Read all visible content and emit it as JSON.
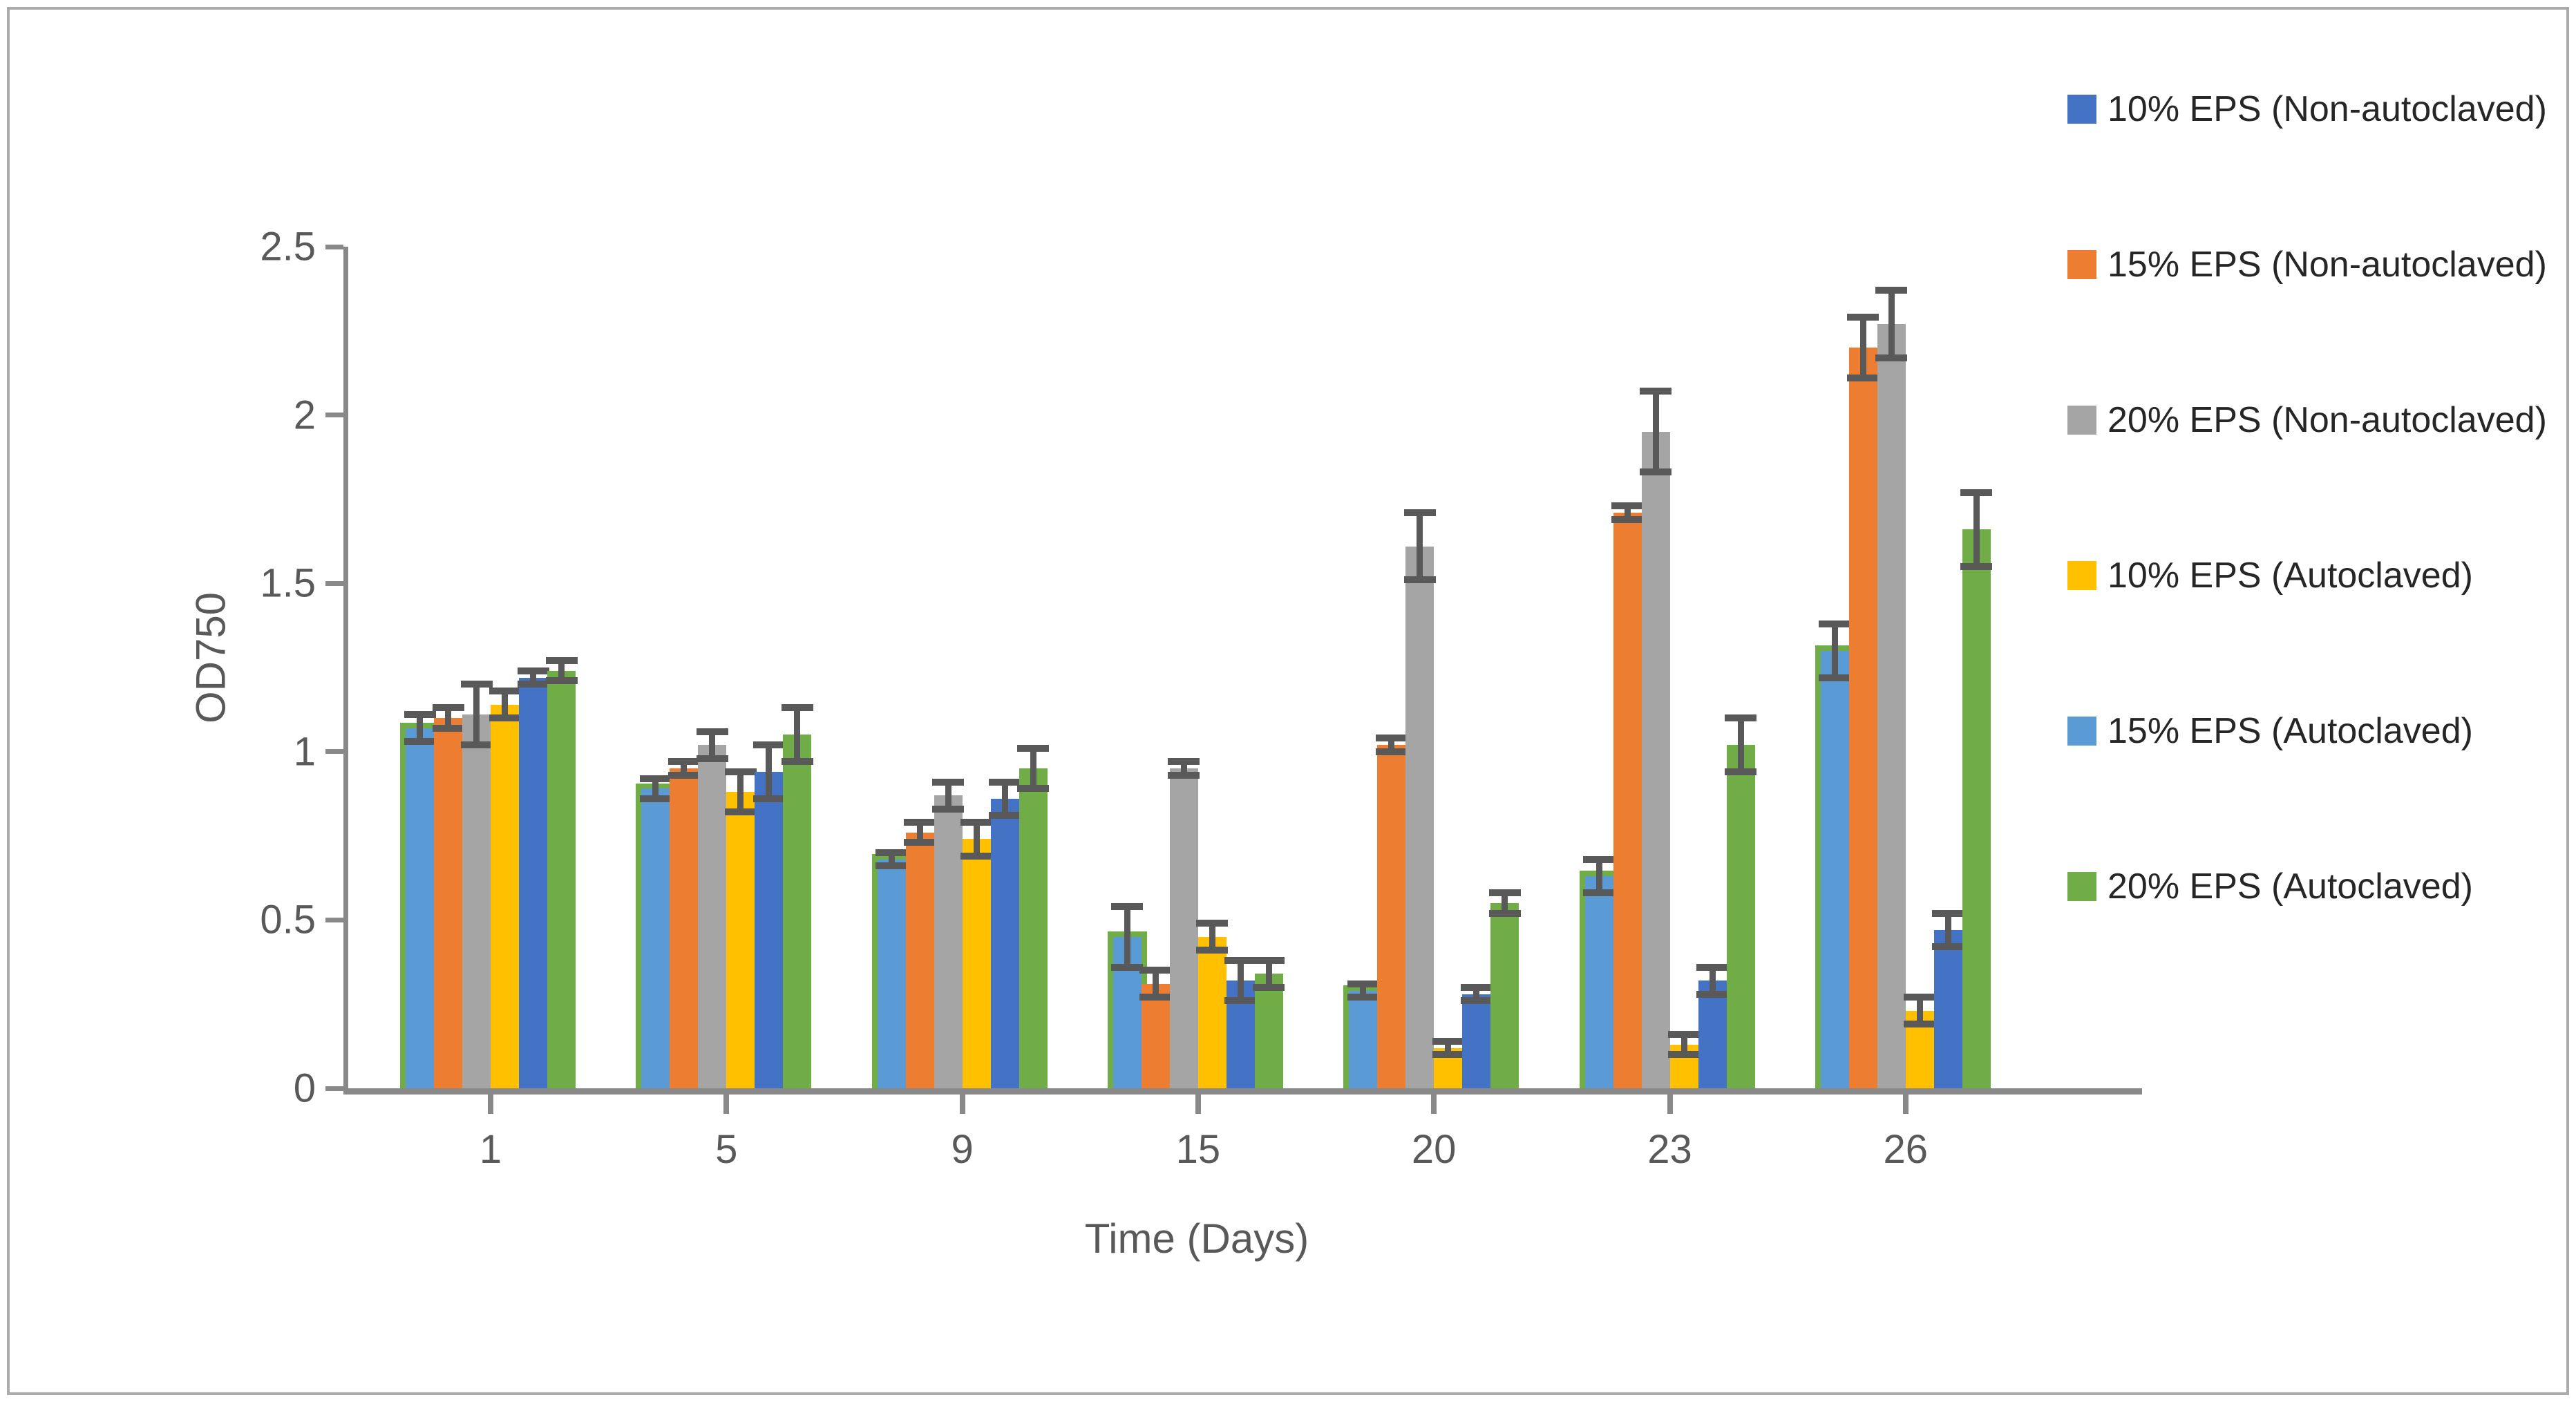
{
  "figure": {
    "background": "#FFFFFF",
    "frame_border_color": "#ABABAB"
  },
  "colors": {
    "axis_line": "#898989",
    "error_bar": "#595959",
    "tick_text": "#595959",
    "axis_title_text": "#595959",
    "legend_text": "#262626"
  },
  "chart_data": {
    "type": "bar",
    "title": "",
    "xlabel": "Time (Days)",
    "ylabel": "OD750",
    "categories": [
      "1",
      "5",
      "9",
      "15",
      "20",
      "23",
      "26"
    ],
    "y_axis": {
      "min": 0,
      "max": 2.5,
      "tick_step": 0.5,
      "ticks": [
        "0",
        "0.5",
        "1",
        "1.5",
        "2",
        "2.5"
      ]
    },
    "grid": false,
    "legend_position": "right",
    "error_bars": true,
    "series": [
      {
        "name": "10% EPS (Non-autoclaved)",
        "color": "#4472C4",
        "values": [
          1.22,
          0.94,
          0.86,
          0.32,
          0.28,
          0.32,
          0.47
        ],
        "errors": [
          0.02,
          0.08,
          0.05,
          0.06,
          0.02,
          0.04,
          0.05
        ]
      },
      {
        "name": "15% EPS (Non-autoclaved)",
        "color": "#ED7D31",
        "values": [
          1.1,
          0.95,
          0.76,
          0.31,
          1.02,
          1.71,
          2.2
        ],
        "errors": [
          0.03,
          0.02,
          0.03,
          0.04,
          0.02,
          0.02,
          0.09
        ]
      },
      {
        "name": "20% EPS (Non-autoclaved)",
        "color": "#A5A5A5",
        "values": [
          1.11,
          1.02,
          0.87,
          0.95,
          1.61,
          1.95,
          2.27
        ],
        "errors": [
          0.09,
          0.04,
          0.04,
          0.02,
          0.1,
          0.12,
          0.1
        ]
      },
      {
        "name": "10% EPS (Autoclaved)",
        "color": "#FFC000",
        "values": [
          1.14,
          0.88,
          0.74,
          0.45,
          0.12,
          0.13,
          0.23
        ],
        "errors": [
          0.04,
          0.06,
          0.05,
          0.04,
          0.02,
          0.03,
          0.04
        ]
      },
      {
        "name": "15% EPS (Autoclaved)",
        "color": "#5B9BD5",
        "values": [
          1.07,
          0.89,
          0.68,
          0.45,
          0.29,
          0.63,
          1.3
        ],
        "errors": [
          0.04,
          0.03,
          0.02,
          0.09,
          0.02,
          0.05,
          0.08
        ]
      },
      {
        "name": "20% EPS (Autoclaved)",
        "color": "#70AD47",
        "values": [
          1.24,
          1.05,
          0.95,
          0.34,
          0.55,
          1.02,
          1.66
        ],
        "errors": [
          0.03,
          0.08,
          0.06,
          0.04,
          0.03,
          0.08,
          0.11
        ]
      }
    ],
    "plot_order_left_to_right": [
      "15% EPS (Autoclaved)",
      "15% EPS (Non-autoclaved)",
      "20% EPS (Non-autoclaved)",
      "10% EPS (Autoclaved)",
      "10% EPS (Non-autoclaved)",
      "20% EPS (Autoclaved)"
    ],
    "first_bar_green_backing": {
      "color": "#70AD47",
      "extra_height": 0.016
    }
  }
}
